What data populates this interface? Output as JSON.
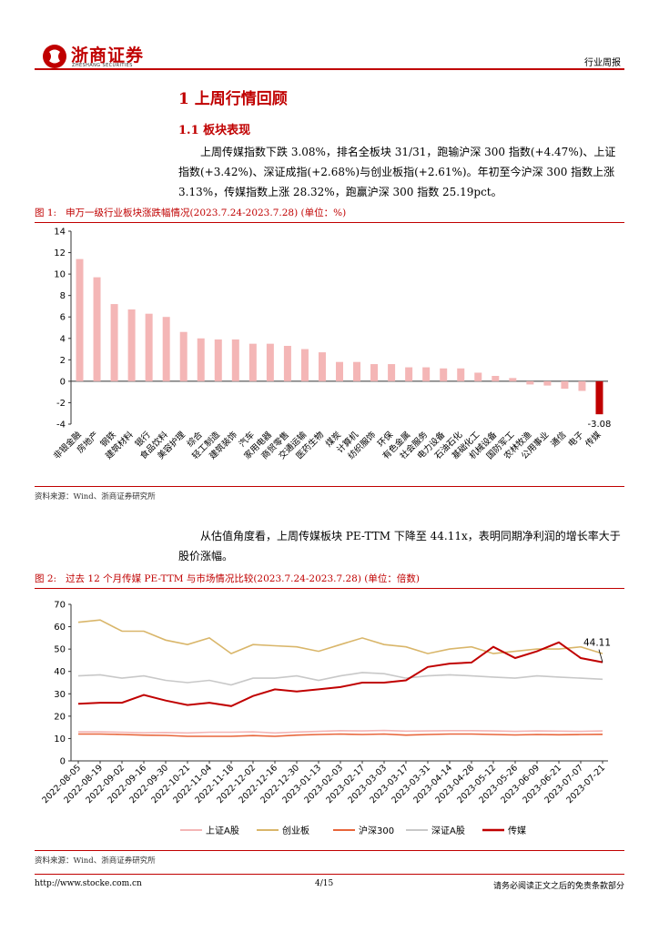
{
  "header": {
    "logo_text": "浙商证券",
    "logo_sub": "ZHESHANG SECURITIES",
    "right_label": "行业周报"
  },
  "section": {
    "h1": "1 上周行情回顾",
    "h2": "1.1 板块表现",
    "para1": "上周传媒指数下跌 3.08%，排名全板块 31/31，跑输沪深 300 指数(+4.47%)、上证指数(+3.42%)、深证成指(+2.68%)与创业板指(+2.61%)。年初至今沪深 300 指数上涨 3.13%，传媒指数上涨 28.32%，跑赢沪深 300 指数 25.19pct。",
    "para2": "从估值角度看，上周传媒板块 PE-TTM 下降至 44.11x，表明同期净利润的增长率大于股价涨幅。"
  },
  "fig1": {
    "label": "图 1:",
    "title": "申万一级行业板块涨跌幅情况(2023.7.24-2023.7.28) (单位：%)",
    "source": "资料来源：Wind、浙商证券研究所"
  },
  "fig2": {
    "label": "图 2:",
    "title": "过去 12 个月传媒 PE-TTM 与市场情况比较(2023.7.24-2023.7.28) (单位：倍数)",
    "source": "资料来源：Wind、浙商证券研究所"
  },
  "footer": {
    "url": "http://www.stocke.com.cn",
    "page": "4/15",
    "disclaimer": "请务必阅读正文之后的免责条款部分"
  },
  "chart_data": [
    {
      "type": "bar",
      "categories": [
        "非银金融",
        "房地产",
        "钢铁",
        "建筑材料",
        "银行",
        "食品饮料",
        "美容护理",
        "综合",
        "轻工制造",
        "建筑装饰",
        "汽车",
        "家用电器",
        "商贸零售",
        "交通运输",
        "医药生物",
        "煤炭",
        "计算机",
        "纺织服饰",
        "环保",
        "有色金属",
        "社会服务",
        "电力设备",
        "石油石化",
        "基础化工",
        "机械设备",
        "国防军工",
        "农林牧渔",
        "公用事业",
        "通信",
        "电子",
        "传媒"
      ],
      "values": [
        11.4,
        9.7,
        7.2,
        6.7,
        6.3,
        6.0,
        4.6,
        4.0,
        3.9,
        3.9,
        3.5,
        3.5,
        3.3,
        3.0,
        2.7,
        1.8,
        1.8,
        1.6,
        1.6,
        1.3,
        1.3,
        1.2,
        1.2,
        0.8,
        0.5,
        0.3,
        -0.3,
        -0.4,
        -0.7,
        -0.9,
        -3.08
      ],
      "highlight_index": 30,
      "highlight_label": "-3.08",
      "ylim": [
        -4,
        14
      ],
      "yticks": [
        "-4",
        "-2",
        "0",
        "2",
        "4",
        "6",
        "8",
        "10",
        "12",
        "14"
      ],
      "colors": {
        "normal": "#f4b6b6",
        "highlight": "#c00000"
      }
    },
    {
      "type": "line",
      "x_ticks": [
        "2022-08-05",
        "2022-08-19",
        "2022-09-02",
        "2022-09-16",
        "2022-09-30",
        "2022-10-21",
        "2022-11-04",
        "2022-11-18",
        "2022-12-02",
        "2022-12-16",
        "2022-12-30",
        "2023-01-13",
        "2023-02-03",
        "2023-02-17",
        "2023-03-03",
        "2023-03-17",
        "2023-03-31",
        "2023-04-14",
        "2023-04-28",
        "2023-05-12",
        "2023-05-26",
        "2023-06-09",
        "2023-06-21",
        "2023-07-07",
        "2023-07-21"
      ],
      "ylim": [
        0,
        70
      ],
      "yticks": [
        "0",
        "10",
        "20",
        "30",
        "40",
        "50",
        "60",
        "70"
      ],
      "end_label": "44.11",
      "series": [
        {
          "name": "上证A股",
          "color": "#f4b6b6",
          "values": [
            13,
            13,
            12.8,
            12.6,
            12.7,
            12.5,
            12.8,
            12.8,
            13,
            12.5,
            12.9,
            13.2,
            13.5,
            13.4,
            13.6,
            13.3,
            13.4,
            13.5,
            13.5,
            13.4,
            13.2,
            13.4,
            13.3,
            13.2,
            13.4
          ]
        },
        {
          "name": "创业板",
          "color": "#d9b66a",
          "values": [
            62,
            63,
            58,
            58,
            54,
            52,
            55,
            48,
            52,
            51.5,
            51,
            49,
            52,
            55,
            52,
            51,
            48,
            50,
            51,
            48,
            49,
            50,
            50,
            51,
            48
          ]
        },
        {
          "name": "沪深300",
          "color": "#e8653a",
          "values": [
            12,
            12,
            11.8,
            11.5,
            11.4,
            11,
            11,
            11,
            11.3,
            11,
            11.5,
            11.8,
            12,
            11.8,
            12,
            11.5,
            11.8,
            12,
            12,
            11.8,
            11.6,
            11.8,
            11.7,
            11.8,
            11.9
          ]
        },
        {
          "name": "深证A股",
          "color": "#c8c8c8",
          "values": [
            38,
            38.5,
            37,
            38,
            36,
            35,
            36,
            34,
            37,
            37,
            38,
            36,
            38,
            39.5,
            39,
            37,
            38,
            38.5,
            38,
            37.5,
            37,
            38,
            37.5,
            37,
            36.5
          ]
        },
        {
          "name": "传媒",
          "color": "#c00000",
          "values": [
            25.5,
            26,
            26,
            29.5,
            27,
            25,
            26,
            24.5,
            29,
            32,
            31,
            32,
            33,
            35,
            35,
            36,
            42,
            43.5,
            44,
            51,
            46,
            49,
            53,
            46,
            44.11
          ]
        }
      ]
    }
  ]
}
